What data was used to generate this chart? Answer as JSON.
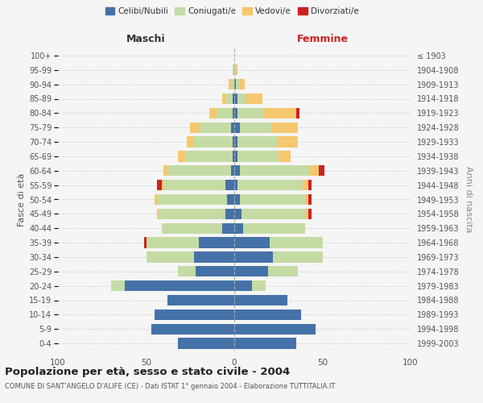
{
  "age_groups": [
    "0-4",
    "5-9",
    "10-14",
    "15-19",
    "20-24",
    "25-29",
    "30-34",
    "35-39",
    "40-44",
    "45-49",
    "50-54",
    "55-59",
    "60-64",
    "65-69",
    "70-74",
    "75-79",
    "80-84",
    "85-89",
    "90-94",
    "95-99",
    "100+"
  ],
  "birth_years": [
    "1999-2003",
    "1994-1998",
    "1989-1993",
    "1984-1988",
    "1979-1983",
    "1974-1978",
    "1969-1973",
    "1964-1968",
    "1959-1963",
    "1954-1958",
    "1949-1953",
    "1944-1948",
    "1939-1943",
    "1934-1938",
    "1929-1933",
    "1924-1928",
    "1919-1923",
    "1914-1918",
    "1909-1913",
    "1904-1908",
    "≤ 1903"
  ],
  "maschi": {
    "celibe": [
      32,
      47,
      45,
      38,
      62,
      22,
      23,
      20,
      7,
      5,
      4,
      5,
      2,
      1,
      1,
      2,
      1,
      1,
      0,
      0,
      0
    ],
    "coniugato": [
      0,
      0,
      0,
      0,
      8,
      10,
      27,
      30,
      34,
      38,
      40,
      35,
      36,
      27,
      22,
      18,
      9,
      4,
      2,
      1,
      0
    ],
    "vedovo": [
      0,
      0,
      0,
      0,
      0,
      0,
      0,
      0,
      0,
      1,
      1,
      1,
      2,
      4,
      4,
      5,
      4,
      2,
      1,
      0,
      0
    ],
    "divorziato": [
      0,
      0,
      0,
      0,
      0,
      0,
      0,
      1,
      0,
      0,
      0,
      3,
      0,
      0,
      0,
      0,
      0,
      0,
      0,
      0,
      0
    ]
  },
  "femmine": {
    "nubile": [
      35,
      46,
      38,
      30,
      10,
      19,
      22,
      20,
      5,
      4,
      3,
      2,
      3,
      2,
      2,
      3,
      2,
      2,
      1,
      0,
      0
    ],
    "coniugata": [
      0,
      0,
      0,
      0,
      8,
      17,
      28,
      30,
      35,
      36,
      37,
      37,
      40,
      23,
      22,
      18,
      15,
      5,
      2,
      1,
      0
    ],
    "vedova": [
      0,
      0,
      0,
      0,
      0,
      0,
      0,
      0,
      0,
      2,
      2,
      3,
      5,
      7,
      12,
      15,
      18,
      9,
      3,
      1,
      0
    ],
    "divorziata": [
      0,
      0,
      0,
      0,
      0,
      0,
      0,
      0,
      0,
      2,
      2,
      2,
      3,
      0,
      0,
      0,
      2,
      0,
      0,
      0,
      0
    ]
  },
  "colors": {
    "celibe": "#4472a8",
    "coniugato": "#c5dba4",
    "vedovo": "#f5c76e",
    "divorziato": "#cc2222"
  },
  "title": "Popolazione per età, sesso e stato civile - 2004",
  "subtitle": "COMUNE DI SANT'ANGELO D'ALIFE (CE) - Dati ISTAT 1° gennaio 2004 - Elaborazione TUTTITALIA.IT",
  "xlabel_maschi": "Maschi",
  "xlabel_femmine": "Femmine",
  "ylabel_left": "Fasce di età",
  "ylabel_right": "Anni di nascita",
  "xlim": 100,
  "background_color": "#f5f5f5"
}
